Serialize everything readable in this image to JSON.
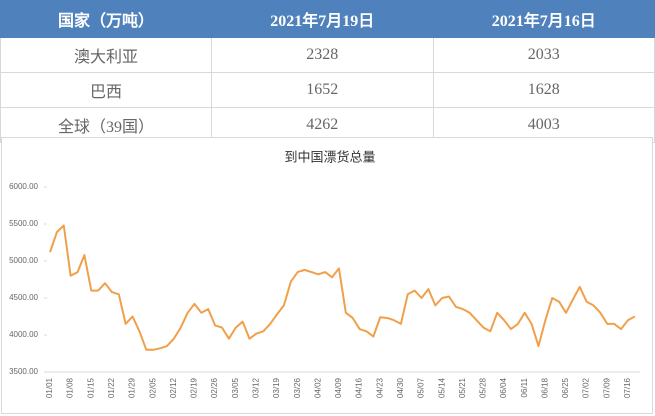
{
  "table": {
    "header": [
      "国家（万吨）",
      "2021年7月19日",
      "2021年7月16日"
    ],
    "rows": [
      [
        "澳大利亚",
        2328,
        2033
      ],
      [
        "巴西",
        1652,
        1628
      ],
      [
        "全球（39国）",
        4262,
        4003
      ]
    ]
  },
  "chart_data": {
    "type": "line",
    "title": "到中国漂货总量",
    "categories": [
      "01/01",
      null,
      null,
      "01/08",
      null,
      null,
      "01/15",
      null,
      null,
      "01/22",
      null,
      null,
      "01/29",
      null,
      null,
      "02/05",
      null,
      null,
      "02/12",
      null,
      null,
      "02/19",
      null,
      null,
      "02/26",
      null,
      null,
      "03/05",
      null,
      null,
      "03/12",
      null,
      null,
      "03/19",
      null,
      null,
      "03/26",
      null,
      null,
      "04/02",
      null,
      null,
      "04/09",
      null,
      null,
      "04/16",
      null,
      null,
      "04/23",
      null,
      null,
      "04/30",
      null,
      null,
      "05/07",
      null,
      null,
      "05/14",
      null,
      null,
      "05/21",
      null,
      null,
      "05/28",
      null,
      null,
      "06/04",
      null,
      null,
      "06/11",
      null,
      null,
      "06/18",
      null,
      null,
      "06/25",
      null,
      null,
      "07/02",
      null,
      null,
      "07/09",
      null,
      null,
      "07/16",
      null
    ],
    "values": [
      5120,
      5390,
      5480,
      4800,
      4850,
      5080,
      4600,
      4600,
      4700,
      4580,
      4550,
      4150,
      4250,
      4050,
      3800,
      3800,
      3820,
      3850,
      3950,
      4100,
      4300,
      4420,
      4300,
      4350,
      4130,
      4100,
      3950,
      4100,
      4180,
      3950,
      4020,
      4050,
      4150,
      4280,
      4400,
      4720,
      4850,
      4880,
      4850,
      4820,
      4850,
      4780,
      4900,
      4300,
      4230,
      4080,
      4050,
      3980,
      4240,
      4230,
      4200,
      4150,
      4550,
      4600,
      4500,
      4620,
      4400,
      4500,
      4520,
      4380,
      4350,
      4300,
      4200,
      4100,
      4050,
      4300,
      4200,
      4080,
      4150,
      4300,
      4150,
      3850,
      4200,
      4500,
      4450,
      4300,
      4480,
      4650,
      4450,
      4400,
      4300,
      4150,
      4150,
      4080,
      4200,
      4250
    ],
    "color": "#f0a04b",
    "ylim": [
      3500,
      6000
    ],
    "yticks": [
      {
        "value": 3500,
        "label": "3500.00"
      },
      {
        "value": 4000,
        "label": "4000.00"
      },
      {
        "value": 4500,
        "label": "4500.00"
      },
      {
        "value": 5000,
        "label": "5000.00"
      },
      {
        "value": 5500,
        "label": "5500.00"
      },
      {
        "value": 6000,
        "label": "6000.00"
      }
    ]
  }
}
